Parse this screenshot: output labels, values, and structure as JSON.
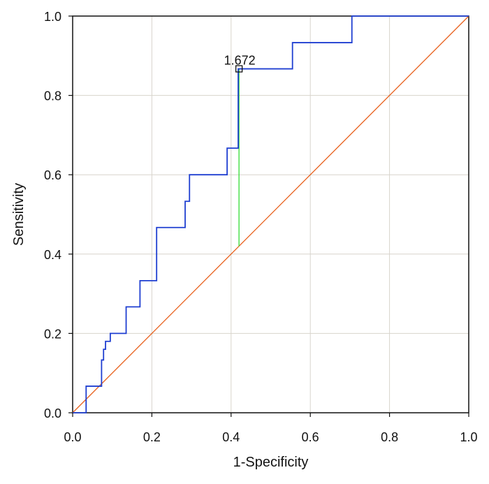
{
  "chart_data": {
    "type": "line",
    "title": "",
    "xlabel": "1-Specificity",
    "ylabel": "Sensitivity",
    "xlim": [
      0.0,
      1.0
    ],
    "ylim": [
      0.0,
      1.0
    ],
    "x_ticks": [
      "0.0",
      "0.2",
      "0.4",
      "0.6",
      "0.8",
      "1.0"
    ],
    "y_ticks": [
      "0.0",
      "0.2",
      "0.4",
      "0.6",
      "0.8",
      "1.0"
    ],
    "grid": true,
    "legend": "none",
    "series": [
      {
        "role": "roc-curve",
        "color": "#1f3fd1",
        "x": [
          0.0,
          0.034,
          0.034,
          0.073,
          0.073,
          0.078,
          0.078,
          0.083,
          0.083,
          0.095,
          0.095,
          0.135,
          0.135,
          0.17,
          0.17,
          0.212,
          0.212,
          0.284,
          0.284,
          0.295,
          0.295,
          0.39,
          0.39,
          0.418,
          0.418,
          0.555,
          0.555,
          0.705,
          0.705,
          1.0
        ],
        "y": [
          0.0,
          0.0,
          0.067,
          0.067,
          0.133,
          0.133,
          0.16,
          0.16,
          0.18,
          0.18,
          0.2,
          0.2,
          0.267,
          0.267,
          0.333,
          0.333,
          0.467,
          0.467,
          0.533,
          0.533,
          0.6,
          0.6,
          0.667,
          0.667,
          0.867,
          0.867,
          0.933,
          0.933,
          1.0,
          1.0
        ]
      },
      {
        "role": "reference-diagonal",
        "color": "#e8601c",
        "x": [
          0.0,
          1.0
        ],
        "y": [
          0.0,
          1.0
        ]
      },
      {
        "role": "youden-index-line",
        "color": "#33dd33",
        "x": [
          0.42,
          0.42
        ],
        "y": [
          0.42,
          0.867
        ]
      }
    ],
    "annotations": [
      {
        "text": "1.672",
        "x": 0.42,
        "y": 0.867,
        "marker": "square"
      }
    ]
  }
}
